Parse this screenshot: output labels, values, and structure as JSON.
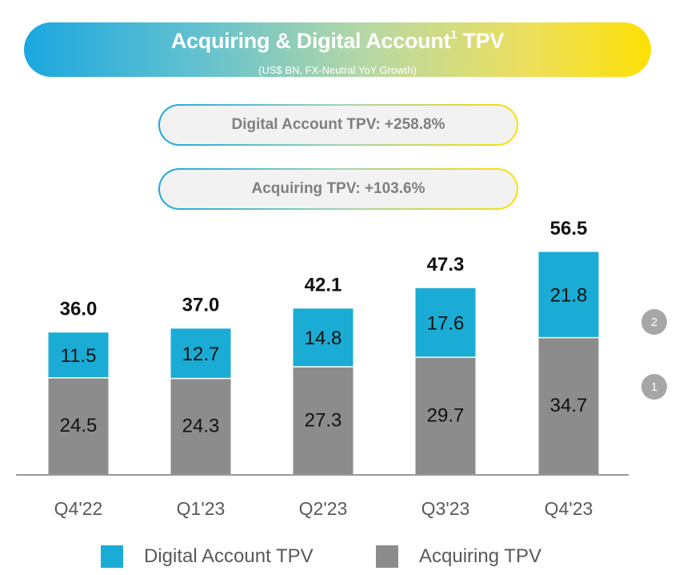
{
  "header": {
    "title": "Acquiring & Digital Account",
    "title_superscript": "1",
    "title_suffix": "TPV",
    "subtitle": "(US$ BN, FX-Neutral YoY Growth)"
  },
  "highlights": {
    "digital_growth": "Digital Account TPV: +258.8%",
    "acquiring_growth": "Acquiring TPV: +103.6%"
  },
  "chart_data": {
    "type": "bar",
    "stacked": true,
    "categories": [
      "Q4'22",
      "Q1'23",
      "Q2'23",
      "Q3'23",
      "Q4'23"
    ],
    "series": [
      {
        "name": "Acquiring TPV",
        "values": [
          24.5,
          24.3,
          27.3,
          29.7,
          34.7
        ],
        "color": "#8c8c8c"
      },
      {
        "name": "Digital Account TPV",
        "values": [
          11.5,
          12.7,
          14.8,
          17.6,
          21.8
        ],
        "color": "#1aacd4"
      }
    ],
    "totals": [
      "36.0",
      "37.0",
      "42.1",
      "47.3",
      "56.5"
    ],
    "title": "Acquiring & Digital Account TPV",
    "ylabel": "US$ BN",
    "ylim": [
      0,
      60
    ],
    "grid": false,
    "legend": "bottom"
  },
  "badges": {
    "digital": "2",
    "acquiring": "1"
  },
  "legend": {
    "digital": "Digital Account TPV",
    "acquiring": "Acquiring TPV"
  },
  "colors": {
    "digital": "#1aacd4",
    "acquiring": "#8c8c8c",
    "axis": "#9a9a9a"
  }
}
